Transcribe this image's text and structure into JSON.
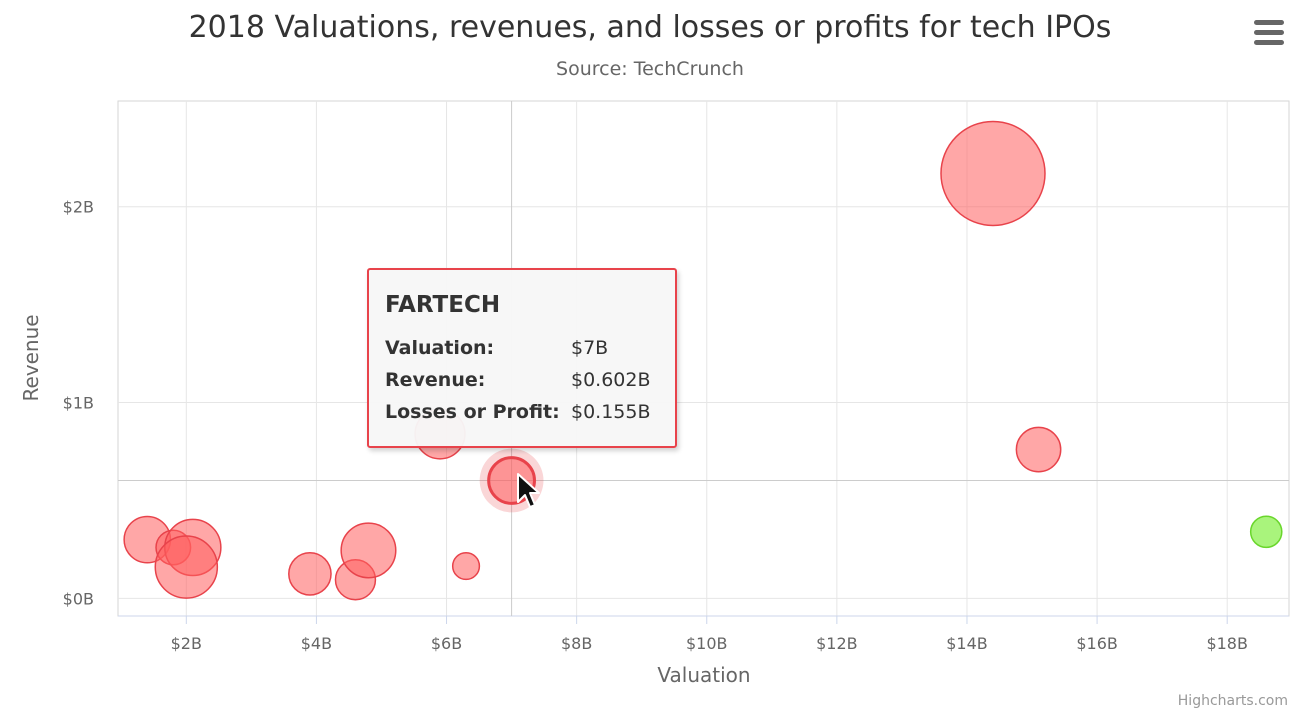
{
  "chart_data": {
    "type": "bubble",
    "title": "2018 Valuations, revenues, and losses or profits for tech IPOs",
    "subtitle": "Source: TechCrunch",
    "xlabel": "Valuation",
    "ylabel": "Revenue",
    "xlim": [
      0.95,
      18.95
    ],
    "ylim": [
      -0.09,
      2.54
    ],
    "x_ticks": [
      2,
      4,
      6,
      8,
      10,
      12,
      14,
      16,
      18
    ],
    "y_ticks": [
      0,
      1,
      2
    ],
    "x_tick_labels": [
      "$2B",
      "$4B",
      "$6B",
      "$8B",
      "$10B",
      "$12B",
      "$14B",
      "$16B",
      "$18B"
    ],
    "y_tick_labels": [
      "$0B",
      "$1B",
      "$2B"
    ],
    "grid": true,
    "credits": "Highcharts.com",
    "points": [
      {
        "x": 14.4,
        "y": 2.17,
        "size": 1.35,
        "profit": false
      },
      {
        "x": 15.1,
        "y": 0.76,
        "size": 0.14,
        "profit": false
      },
      {
        "x": 18.6,
        "y": 0.34,
        "size": 0.04,
        "profit": true
      },
      {
        "x": 5.9,
        "y": 0.84,
        "size": 0.2,
        "profit": false
      },
      {
        "x": 7.0,
        "y": 0.602,
        "size": 0.155,
        "profit": false,
        "highlighted": true
      },
      {
        "x": 1.4,
        "y": 0.3,
        "size": 0.16,
        "profit": false
      },
      {
        "x": 1.8,
        "y": 0.26,
        "size": 0.06,
        "profit": false
      },
      {
        "x": 2.1,
        "y": 0.26,
        "size": 0.28,
        "profit": false
      },
      {
        "x": 2.0,
        "y": 0.16,
        "size": 0.37,
        "profit": false
      },
      {
        "x": 3.9,
        "y": 0.125,
        "size": 0.12,
        "profit": false
      },
      {
        "x": 4.6,
        "y": 0.095,
        "size": 0.1,
        "profit": false
      },
      {
        "x": 4.8,
        "y": 0.245,
        "size": 0.26,
        "profit": false
      },
      {
        "x": 6.3,
        "y": 0.165,
        "size": 0.02,
        "profit": false
      }
    ],
    "colors": {
      "loss_fill": "rgba(255,95,95,0.55)",
      "loss_stroke": "#e8434b",
      "profit_fill": "rgba(140,240,80,0.75)",
      "profit_stroke": "#6ad62c",
      "grid": "#e6e6e6",
      "crosshair": "#cccccc"
    }
  },
  "tooltip": {
    "title": "FARTECH",
    "rows": [
      {
        "label": "Valuation:",
        "value": "$7B"
      },
      {
        "label": "Revenue:",
        "value": "$0.602B"
      },
      {
        "label": "Losses or Profit:",
        "value": "$0.155B"
      }
    ]
  },
  "menu": {
    "icon": "hamburger-menu-icon"
  }
}
